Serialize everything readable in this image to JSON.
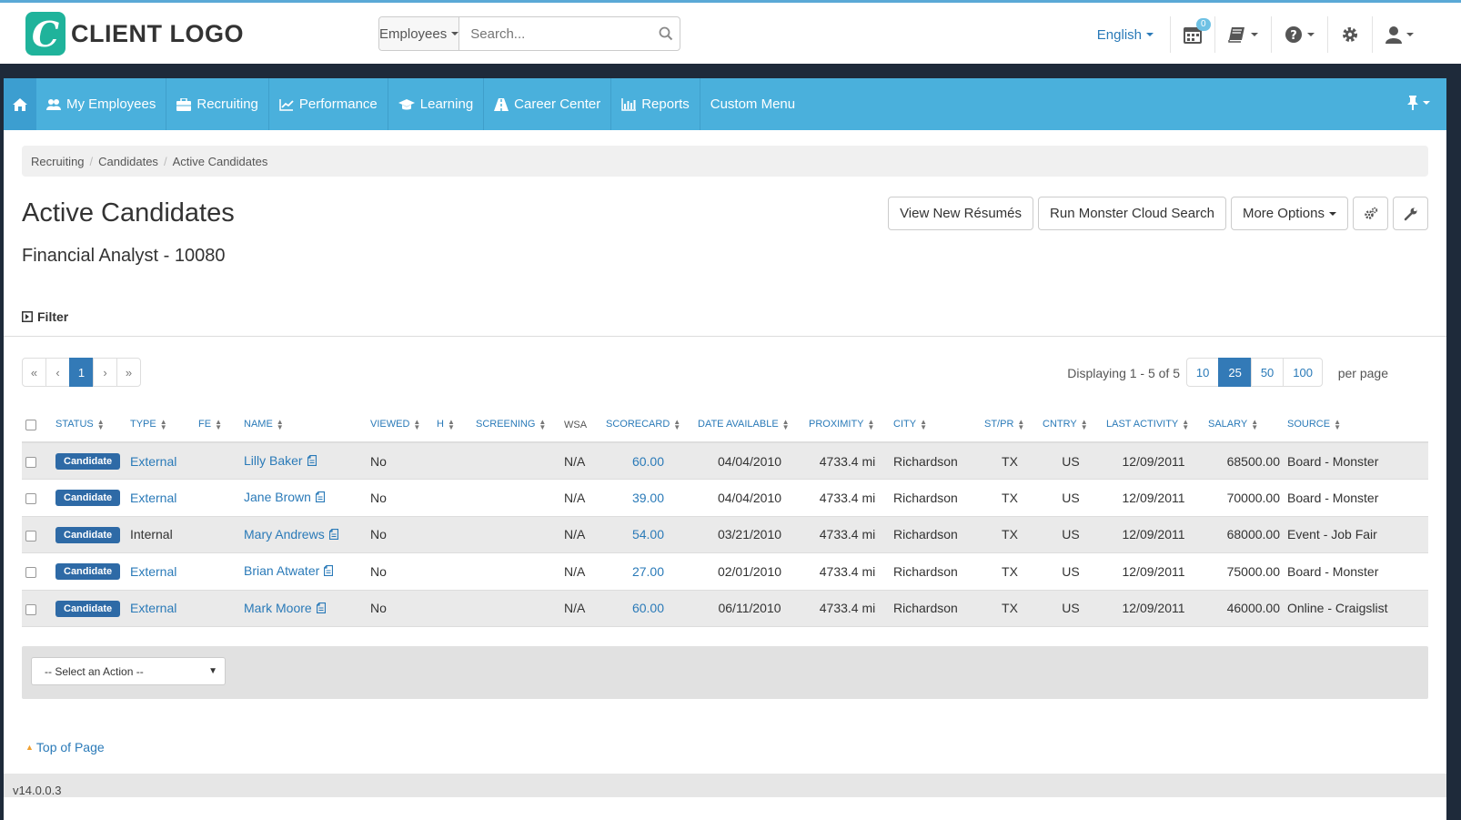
{
  "header": {
    "logo_letter": "C",
    "logo_text": "CLIENT LOGO",
    "search_scope": "Employees",
    "search_placeholder": "Search...",
    "language": "English",
    "calendar_badge": "0"
  },
  "nav": {
    "items": [
      {
        "label": "My Employees",
        "icon": "users-icon"
      },
      {
        "label": "Recruiting",
        "icon": "briefcase-icon"
      },
      {
        "label": "Performance",
        "icon": "line-chart-icon"
      },
      {
        "label": "Learning",
        "icon": "graduation-cap-icon"
      },
      {
        "label": "Career Center",
        "icon": "road-icon"
      },
      {
        "label": "Reports",
        "icon": "bar-chart-icon"
      },
      {
        "label": "Custom Menu",
        "icon": ""
      }
    ]
  },
  "breadcrumb": [
    "Recruiting",
    "Candidates",
    "Active Candidates"
  ],
  "page": {
    "title": "Active Candidates",
    "subtitle": "Financial Analyst - 10080",
    "filter_label": "Filter"
  },
  "actions": {
    "view_new_resumes": "View New Résumés",
    "run_monster": "Run Monster Cloud Search",
    "more_options": "More Options"
  },
  "pagination": {
    "first": "«",
    "prev": "‹",
    "current": "1",
    "next": "›",
    "last": "»",
    "display_info": "Displaying 1 - 5 of 5",
    "per_page_options": [
      "10",
      "25",
      "50",
      "100"
    ],
    "per_page_selected": "25",
    "per_page_label": "per page"
  },
  "table": {
    "columns": [
      "STATUS",
      "TYPE",
      "FE",
      "NAME",
      "VIEWED",
      "H",
      "SCREENING",
      "WSA",
      "SCORECARD",
      "DATE AVAILABLE",
      "PROXIMITY",
      "CITY",
      "ST/PR",
      "CNTRY",
      "LAST ACTIVITY",
      "SALARY",
      "SOURCE"
    ],
    "rows": [
      {
        "status": "Candidate",
        "type": "External",
        "name": "Lilly Baker",
        "viewed": "No",
        "wsa": "N/A",
        "scorecard": "60.00",
        "date_available": "04/04/2010",
        "proximity": "4733.4 mi",
        "city": "Richardson",
        "state": "TX",
        "country": "US",
        "last_activity": "12/09/2011",
        "salary": "68500.00",
        "source": "Board - Monster"
      },
      {
        "status": "Candidate",
        "type": "External",
        "name": "Jane Brown",
        "viewed": "No",
        "wsa": "N/A",
        "scorecard": "39.00",
        "date_available": "04/04/2010",
        "proximity": "4733.4 mi",
        "city": "Richardson",
        "state": "TX",
        "country": "US",
        "last_activity": "12/09/2011",
        "salary": "70000.00",
        "source": "Board - Monster"
      },
      {
        "status": "Candidate",
        "type": "Internal",
        "name": "Mary Andrews",
        "viewed": "No",
        "wsa": "N/A",
        "scorecard": "54.00",
        "date_available": "03/21/2010",
        "proximity": "4733.4 mi",
        "city": "Richardson",
        "state": "TX",
        "country": "US",
        "last_activity": "12/09/2011",
        "salary": "68000.00",
        "source": "Event - Job Fair"
      },
      {
        "status": "Candidate",
        "type": "External",
        "name": "Brian Atwater",
        "viewed": "No",
        "wsa": "N/A",
        "scorecard": "27.00",
        "date_available": "02/01/2010",
        "proximity": "4733.4 mi",
        "city": "Richardson",
        "state": "TX",
        "country": "US",
        "last_activity": "12/09/2011",
        "salary": "75000.00",
        "source": "Board - Monster"
      },
      {
        "status": "Candidate",
        "type": "External",
        "name": "Mark Moore",
        "viewed": "No",
        "wsa": "N/A",
        "scorecard": "60.00",
        "date_available": "06/11/2010",
        "proximity": "4733.4 mi",
        "city": "Richardson",
        "state": "TX",
        "country": "US",
        "last_activity": "12/09/2011",
        "salary": "46000.00",
        "source": "Online - Craigslist"
      }
    ]
  },
  "bulk_action": {
    "placeholder": "-- Select an Action --"
  },
  "footer": {
    "top_of_page": "Top of Page",
    "version": "v14.0.0.3"
  },
  "colors": {
    "nav_bg": "#4ab0dc",
    "primary": "#337ab7",
    "link": "#2a7ab8",
    "logo": "#1fb39b"
  }
}
